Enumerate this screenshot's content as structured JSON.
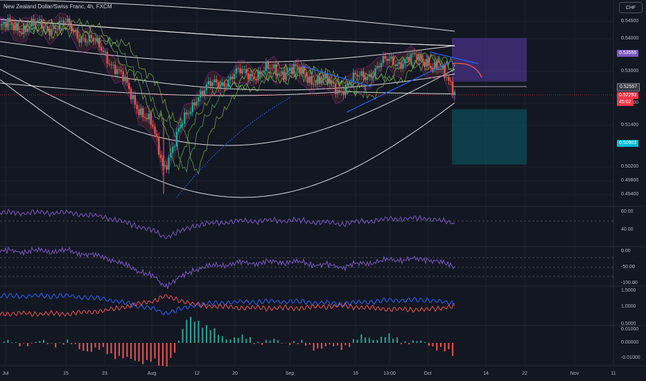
{
  "header": {
    "title": "New Zealand Dollar/Swiss Franc, 4h, FXCM",
    "currency_button": "CHF"
  },
  "colors": {
    "background": "#131722",
    "bull": "#26a69a",
    "bear": "#ef5350",
    "envelope": "#ffffff",
    "trend_line": "#2962ff",
    "rsi_line": "#7e57c2",
    "short_zone_stop": "#5b3aa8",
    "short_zone_target": "#0b4f5a"
  },
  "price_axis": {
    "ticks": [
      "0.54500",
      "0.54000",
      "0.53000",
      "0.52000",
      "0.51400",
      "0.50200",
      "0.49800",
      "0.49400"
    ],
    "badges": [
      {
        "label": "0.53556",
        "color": "#7e57c2"
      },
      {
        "label": "0.52557",
        "color": "#363a45"
      },
      {
        "label": "0.52293",
        "color": "#f23645"
      },
      {
        "label": "45:02",
        "color": "#f23645"
      },
      {
        "label": "0.50903",
        "color": "#00bcd4"
      }
    ]
  },
  "time_axis": {
    "ticks": [
      "Jul",
      "15",
      "23",
      "Aug",
      "12",
      "20",
      "Sep",
      "16",
      "13:00",
      "Oct",
      "14",
      "22",
      "Nov",
      "11"
    ]
  },
  "panes": {
    "pane1": {
      "ticks": [
        "60.00",
        "40.00"
      ]
    },
    "pane2": {
      "ticks": [
        "0.00",
        "-50.00",
        "-100.00"
      ]
    },
    "pane3": {
      "ticks": [
        "1.5000",
        "1.0000",
        "0.5000"
      ]
    },
    "pane4": {
      "ticks": [
        "0.01000",
        "0.00000",
        "-0.01000"
      ]
    }
  },
  "chart_data": {
    "type": "candlestick",
    "symbol": "New Zealand Dollar/Swiss Franc",
    "timeframe": "4h",
    "source": "FXCM",
    "last_price": 0.52293,
    "countdown": "45:02",
    "position_tool": {
      "stop": 0.53556,
      "entry": 0.52557,
      "target": 0.50903
    },
    "price_path": [
      {
        "x": "Jul",
        "close": 0.5452
      },
      {
        "x": "15",
        "close": 0.5458
      },
      {
        "x": "23",
        "close": 0.5365
      },
      {
        "x": "Aug",
        "close": 0.509
      },
      {
        "x": "Aug low",
        "close": 0.495
      },
      {
        "x": "12",
        "close": 0.521
      },
      {
        "x": "20",
        "close": 0.528
      },
      {
        "x": "Sep",
        "close": 0.53
      },
      {
        "x": "16",
        "close": 0.523
      },
      {
        "x": "13:00",
        "close": 0.533
      },
      {
        "x": "Oct",
        "close": 0.5338
      },
      {
        "x": "last",
        "close": 0.52293
      }
    ]
  }
}
